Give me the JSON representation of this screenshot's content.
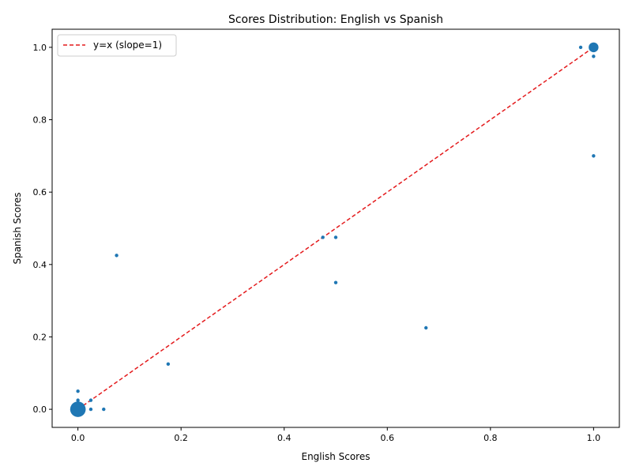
{
  "chart_data": {
    "type": "scatter",
    "title": "Scores Distribution: English vs Spanish",
    "xlabel": "English Scores",
    "ylabel": "Spanish Scores",
    "xlim": [
      -0.05,
      1.05
    ],
    "ylim": [
      -0.05,
      1.05
    ],
    "x_ticks": [
      0.0,
      0.2,
      0.4,
      0.6,
      0.8,
      1.0
    ],
    "y_ticks": [
      0.0,
      0.2,
      0.4,
      0.6,
      0.8,
      1.0
    ],
    "x_tick_labels": [
      "0.0",
      "0.2",
      "0.4",
      "0.6",
      "0.8",
      "1.0"
    ],
    "y_tick_labels": [
      "0.0",
      "0.2",
      "0.4",
      "0.6",
      "0.8",
      "1.0"
    ],
    "grid": false,
    "legend_position": "upper-left",
    "colors": {
      "points": "#1f77b4",
      "reference_line": "#e41a1c"
    },
    "series": [
      {
        "points": [
          {
            "x": 0.0,
            "y": 0.0,
            "count": 20
          },
          {
            "x": 0.0,
            "y": 0.05,
            "count": 1
          },
          {
            "x": 0.0,
            "y": 0.025,
            "count": 1
          },
          {
            "x": 0.025,
            "y": 0.025,
            "count": 1
          },
          {
            "x": 0.025,
            "y": 0.0,
            "count": 1
          },
          {
            "x": 0.05,
            "y": 0.0,
            "count": 1
          },
          {
            "x": 0.075,
            "y": 0.425,
            "count": 1
          },
          {
            "x": 0.175,
            "y": 0.125,
            "count": 1
          },
          {
            "x": 0.475,
            "y": 0.475,
            "count": 1
          },
          {
            "x": 0.5,
            "y": 0.475,
            "count": 1
          },
          {
            "x": 0.5,
            "y": 0.35,
            "count": 1
          },
          {
            "x": 0.675,
            "y": 0.225,
            "count": 1
          },
          {
            "x": 0.975,
            "y": 1.0,
            "count": 1
          },
          {
            "x": 1.0,
            "y": 1.0,
            "count": 8
          },
          {
            "x": 1.0,
            "y": 0.975,
            "count": 1
          },
          {
            "x": 1.0,
            "y": 0.7,
            "count": 1
          }
        ]
      }
    ],
    "reference_line": {
      "label": "y=x (slope=1)",
      "from": [
        0,
        0
      ],
      "to": [
        1,
        1
      ],
      "style": "dashed"
    }
  }
}
